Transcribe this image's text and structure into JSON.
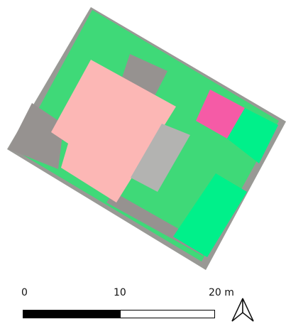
{
  "map": {
    "layers": [
      {
        "name": "parcel-boundary",
        "color": "#999995"
      },
      {
        "name": "lawn",
        "color": "#3fd978"
      },
      {
        "name": "building-main",
        "color": "#fcb7b5"
      },
      {
        "name": "paved-area",
        "color": "#969290"
      },
      {
        "name": "terrace",
        "color": "#b3b3b1"
      },
      {
        "name": "flower-bed",
        "color": "#f55ba6"
      },
      {
        "name": "garden-area",
        "color": "#00f08a"
      }
    ],
    "north_arrow_icon": "north-arrow-icon"
  },
  "scale": {
    "label_0": "0",
    "label_10": "10",
    "label_20": "20 m",
    "bar_dark_color": "#000000",
    "bar_light_color": "#ffffff"
  }
}
